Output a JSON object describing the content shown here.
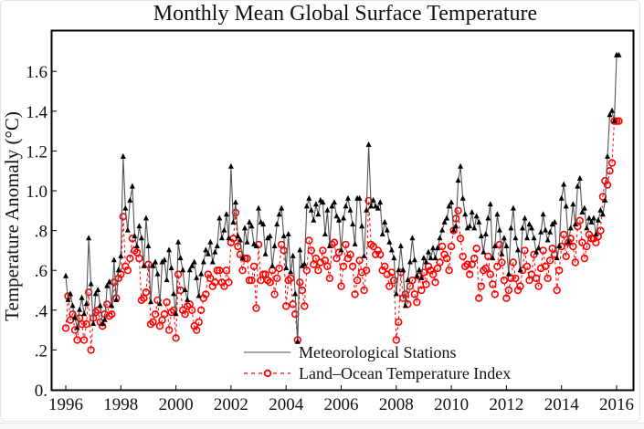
{
  "chart_data": {
    "type": "line",
    "title": "Monthly Mean Global Surface Temperature",
    "xlabel": "",
    "ylabel": "Temperature Anomaly (°C)",
    "xlim": [
      1995.5,
      2016.6
    ],
    "ylim": [
      0,
      1.8
    ],
    "x_ticks": [
      1996,
      1998,
      2000,
      2002,
      2004,
      2006,
      2008,
      2010,
      2012,
      2014,
      2016
    ],
    "x_tick_labels": [
      "1996",
      "1998",
      "2000",
      "2002",
      "2004",
      "2006",
      "2008",
      "2010",
      "2012",
      "2014",
      "2016"
    ],
    "y_ticks": [
      0,
      0.2,
      0.4,
      0.6,
      0.8,
      1.0,
      1.2,
      1.4,
      1.6
    ],
    "y_tick_labels": [
      "0.",
      ".2",
      ".4",
      ".6",
      ".8",
      "1.0",
      "1.2",
      "1.4",
      "1.6"
    ],
    "grid": false,
    "legend_position": "bottom-center",
    "start_year": 1996,
    "start_month": 1,
    "series": [
      {
        "name": "Meteorological Stations",
        "color": "#000000",
        "line_style": "solid",
        "marker": "triangle",
        "values": [
          0.57,
          0.45,
          0.48,
          0.42,
          0.36,
          0.31,
          0.4,
          0.46,
          0.38,
          0.43,
          0.76,
          0.53,
          0.33,
          0.48,
          0.5,
          0.42,
          0.33,
          0.35,
          0.52,
          0.54,
          0.42,
          0.65,
          0.45,
          0.6,
          0.67,
          1.17,
          0.91,
          0.8,
          0.95,
          1.02,
          0.77,
          0.72,
          0.82,
          0.76,
          0.62,
          0.86,
          0.72,
          0.44,
          0.62,
          0.64,
          0.58,
          0.43,
          0.64,
          0.65,
          0.55,
          0.7,
          0.61,
          0.48,
          0.38,
          0.74,
          0.66,
          0.6,
          0.5,
          0.45,
          0.6,
          0.62,
          0.64,
          0.56,
          0.47,
          0.58,
          0.64,
          0.7,
          0.68,
          0.74,
          0.64,
          0.69,
          0.72,
          0.86,
          0.76,
          0.8,
          0.88,
          0.76,
          1.12,
          0.84,
          0.94,
          0.77,
          0.75,
          0.66,
          0.81,
          0.74,
          0.84,
          0.82,
          0.73,
          0.72,
          0.91,
          0.84,
          0.83,
          0.68,
          0.76,
          0.77,
          0.62,
          0.72,
          0.83,
          0.88,
          0.91,
          0.77,
          0.61,
          0.78,
          0.59,
          0.67,
          0.48,
          0.24,
          0.7,
          0.62,
          0.63,
          0.92,
          0.96,
          0.9,
          0.85,
          0.93,
          0.88,
          0.95,
          0.94,
          0.78,
          0.9,
          0.72,
          0.92,
          0.94,
          0.87,
          0.85,
          0.7,
          0.86,
          0.92,
          0.96,
          0.9,
          0.83,
          0.73,
          0.96,
          0.96,
          0.82,
          0.67,
          0.9,
          1.23,
          0.92,
          0.95,
          0.92,
          0.91,
          0.94,
          0.78,
          0.84,
          0.8,
          0.74,
          0.7,
          0.66,
          0.48,
          0.6,
          0.72,
          0.6,
          0.42,
          0.55,
          0.64,
          0.76,
          0.65,
          0.57,
          0.6,
          0.56,
          0.66,
          0.64,
          0.69,
          0.66,
          0.71,
          0.66,
          0.71,
          0.76,
          0.8,
          0.84,
          0.86,
          0.92,
          0.94,
          0.8,
          0.82,
          1.05,
          1.12,
          0.96,
          0.88,
          0.81,
          0.82,
          0.89,
          0.81,
          0.87,
          0.84,
          0.77,
          0.69,
          0.78,
          0.86,
          0.93,
          0.66,
          0.72,
          0.88,
          0.8,
          0.68,
          0.76,
          0.72,
          0.58,
          0.81,
          0.91,
          0.76,
          0.7,
          0.6,
          0.81,
          0.86,
          0.76,
          0.83,
          0.81,
          0.76,
          0.69,
          0.71,
          0.79,
          0.88,
          0.8,
          0.75,
          0.79,
          0.83,
          0.84,
          0.66,
          0.72,
          0.96,
          1.03,
          0.92,
          0.74,
          0.81,
          0.93,
          0.83,
          1.02,
          1.06,
          0.89,
          0.91,
          0.81,
          0.86,
          0.84,
          0.86,
          0.78,
          0.85,
          0.9,
          0.88,
          0.95,
          1.17,
          1.38,
          1.4,
          1.35,
          1.68,
          1.68
        ]
      },
      {
        "name": "Land–Ocean Temperature Index",
        "color": "#ff0000",
        "line_style": "dashed",
        "marker": "circle",
        "values": [
          0.31,
          0.47,
          0.35,
          0.38,
          0.3,
          0.25,
          0.36,
          0.33,
          0.25,
          0.33,
          0.49,
          0.2,
          0.36,
          0.39,
          0.4,
          0.34,
          0.32,
          0.38,
          0.43,
          0.37,
          0.38,
          0.54,
          0.46,
          0.56,
          0.58,
          0.87,
          0.62,
          0.6,
          0.66,
          0.76,
          0.7,
          0.69,
          0.66,
          0.45,
          0.46,
          0.49,
          0.63,
          0.33,
          0.34,
          0.38,
          0.45,
          0.32,
          0.35,
          0.38,
          0.44,
          0.3,
          0.39,
          0.4,
          0.26,
          0.58,
          0.5,
          0.4,
          0.38,
          0.42,
          0.43,
          0.4,
          0.32,
          0.3,
          0.34,
          0.4,
          0.46,
          0.48,
          0.58,
          0.56,
          0.52,
          0.54,
          0.6,
          0.6,
          0.54,
          0.52,
          0.6,
          0.54,
          0.74,
          0.76,
          0.89,
          0.72,
          0.68,
          0.6,
          0.66,
          0.66,
          0.55,
          0.55,
          0.62,
          0.41,
          0.73,
          0.55,
          0.58,
          0.58,
          0.55,
          0.54,
          0.6,
          0.48,
          0.56,
          0.61,
          0.73,
          0.7,
          0.42,
          0.55,
          0.56,
          0.43,
          0.38,
          0.25,
          0.54,
          0.5,
          0.42,
          0.6,
          0.75,
          0.7,
          0.63,
          0.66,
          0.6,
          0.64,
          0.7,
          0.65,
          0.62,
          0.56,
          0.73,
          0.74,
          0.66,
          0.69,
          0.52,
          0.62,
          0.73,
          0.66,
          0.68,
          0.62,
          0.48,
          0.55,
          0.65,
          0.59,
          0.5,
          0.6,
          0.95,
          0.73,
          0.72,
          0.68,
          0.7,
          0.68,
          0.6,
          0.62,
          0.58,
          0.52,
          0.59,
          0.55,
          0.25,
          0.34,
          0.59,
          0.46,
          0.48,
          0.43,
          0.52,
          0.55,
          0.48,
          0.44,
          0.57,
          0.5,
          0.59,
          0.53,
          0.62,
          0.6,
          0.58,
          0.54,
          0.61,
          0.64,
          0.72,
          0.68,
          0.66,
          0.6,
          0.72,
          0.8,
          0.86,
          0.9,
          0.76,
          0.67,
          0.62,
          0.63,
          0.58,
          0.63,
          0.66,
          0.71,
          0.46,
          0.52,
          0.6,
          0.61,
          0.67,
          0.58,
          0.53,
          0.48,
          0.62,
          0.73,
          0.64,
          0.55,
          0.46,
          0.5,
          0.56,
          0.64,
          0.56,
          0.5,
          0.52,
          0.6,
          0.7,
          0.62,
          0.55,
          0.58,
          0.68,
          0.56,
          0.52,
          0.61,
          0.7,
          0.62,
          0.56,
          0.65,
          0.71,
          0.68,
          0.5,
          0.6,
          0.72,
          0.78,
          0.67,
          0.74,
          0.76,
          0.72,
          0.64,
          0.82,
          0.85,
          0.74,
          0.66,
          0.72,
          0.78,
          0.76,
          0.76,
          0.74,
          0.77,
          0.8,
          0.97,
          1.05,
          1.03,
          1.1,
          1.14,
          1.35,
          1.35,
          1.35
        ]
      }
    ]
  }
}
